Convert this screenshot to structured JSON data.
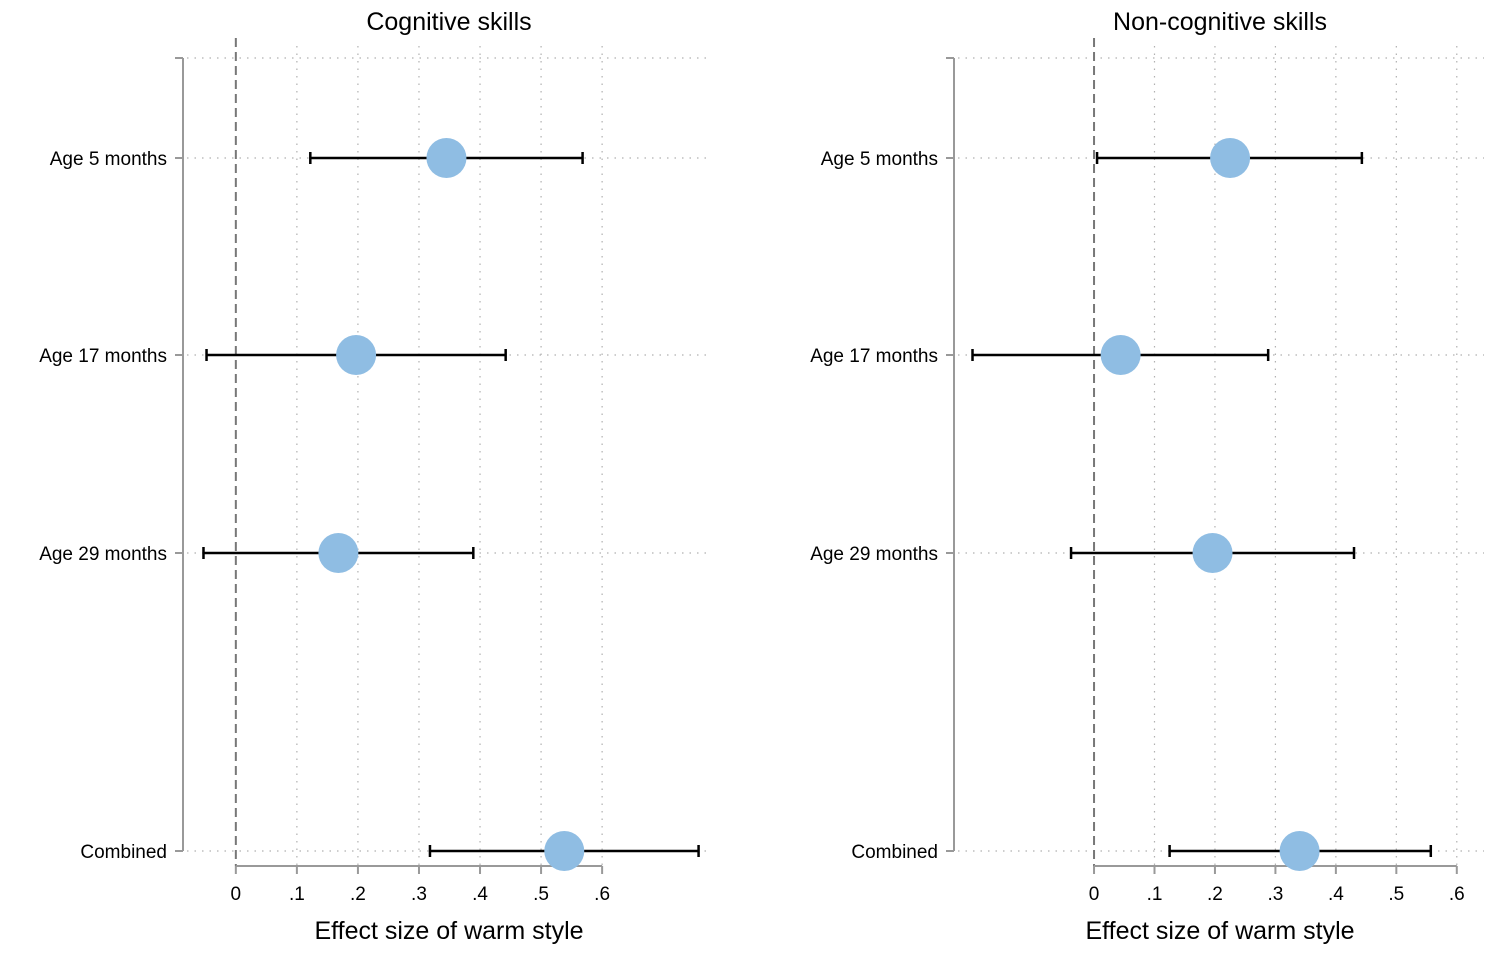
{
  "chart_data": [
    {
      "type": "scatter",
      "title": "Cognitive skills",
      "xlabel": "Effect size of warm style",
      "ylabel": "",
      "categories": [
        "Age 5 months",
        "Age 17 months",
        "Age 29 months",
        "Combined"
      ],
      "x_ticks": [
        "0",
        ".1",
        ".2",
        ".3",
        ".4",
        ".5",
        ".6"
      ],
      "xlim": [
        -0.08,
        0.78
      ],
      "grid": true,
      "points": [
        {
          "label": "Age 5 months",
          "estimate": 0.345,
          "ci_low": 0.122,
          "ci_high": 0.568
        },
        {
          "label": "Age 17 months",
          "estimate": 0.197,
          "ci_low": -0.048,
          "ci_high": 0.442
        },
        {
          "label": "Age 29 months",
          "estimate": 0.168,
          "ci_low": -0.053,
          "ci_high": 0.389
        },
        {
          "label": "Combined",
          "estimate": 0.538,
          "ci_low": 0.318,
          "ci_high": 0.758
        }
      ],
      "reference_line": 0,
      "marker_color": "#8fbde3"
    },
    {
      "type": "scatter",
      "title": "Non-cognitive skills",
      "xlabel": "Effect size of warm style",
      "ylabel": "",
      "categories": [
        "Age 5 months",
        "Age 17 months",
        "Age 29 months",
        "Combined"
      ],
      "x_ticks": [
        "0",
        ".1",
        ".2",
        ".3",
        ".4",
        ".5",
        ".6"
      ],
      "xlim": [
        -0.225,
        0.645
      ],
      "grid": true,
      "points": [
        {
          "label": "Age 5 months",
          "estimate": 0.225,
          "ci_low": 0.005,
          "ci_high": 0.443
        },
        {
          "label": "Age 17 months",
          "estimate": 0.044,
          "ci_low": -0.201,
          "ci_high": 0.288
        },
        {
          "label": "Age 29 months",
          "estimate": 0.196,
          "ci_low": -0.038,
          "ci_high": 0.43
        },
        {
          "label": "Combined",
          "estimate": 0.34,
          "ci_low": 0.125,
          "ci_high": 0.557
        }
      ],
      "reference_line": 0,
      "marker_color": "#8fbde3"
    }
  ]
}
